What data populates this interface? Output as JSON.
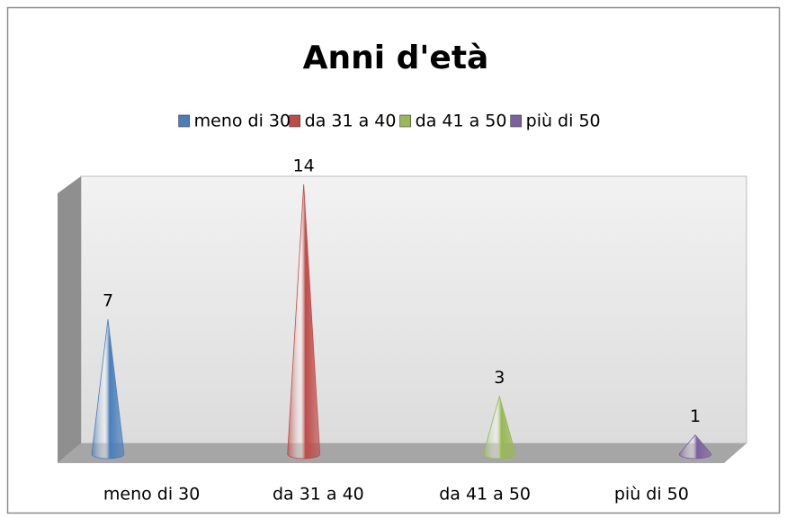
{
  "chart_data": {
    "type": "cone",
    "title": "Anni d'età",
    "categories": [
      "meno di 30",
      "da 31 a 40",
      "da 41 a 50",
      "più di 50"
    ],
    "values": [
      7,
      14,
      3,
      1
    ],
    "colors": [
      "#4a7ebb",
      "#be4b48",
      "#98b954",
      "#7d60a0"
    ],
    "legend": "top",
    "data_labels": true
  }
}
